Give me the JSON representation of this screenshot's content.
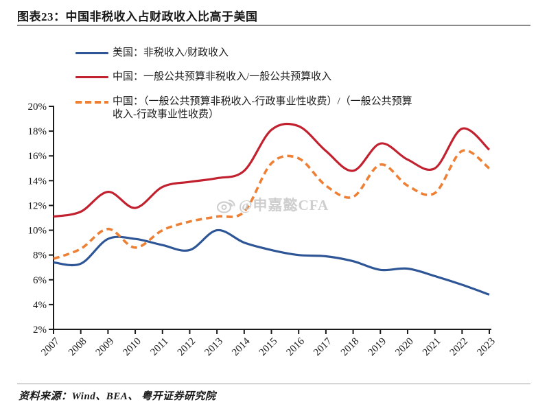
{
  "header": {
    "title": "图表23：中国非税收入占财政收入比高于美国"
  },
  "legend": {
    "items": [
      {
        "id": "us",
        "label": "美国：非税收入/财政收入",
        "color": "#2e5696",
        "style": "solid"
      },
      {
        "id": "china",
        "label": "中国：一般公共预算非税收入/一般公共预算收入",
        "color": "#c2212f",
        "style": "solid"
      },
      {
        "id": "china-adjusted",
        "label": "中国：（一般公共预算非税收入-行政事业性收费）/（一般公共预算",
        "label_line2": "收入-行政事业性收费）",
        "color": "#ee8035",
        "style": "dashed"
      }
    ]
  },
  "watermark": {
    "icon": "weibo-icon",
    "text": "@申嘉懿CFA",
    "color": "#c6c6c6"
  },
  "footer": {
    "source": "资料来源：Wind、BEA、 粤开证券研究院"
  },
  "chart_data": {
    "type": "line",
    "title": "中国非税收入占财政收入比高于美国",
    "x": [
      2007,
      2008,
      2009,
      2010,
      2011,
      2012,
      2013,
      2014,
      2015,
      2016,
      2017,
      2018,
      2019,
      2020,
      2021,
      2022,
      2023
    ],
    "series": [
      {
        "name": "美国：非税收入/财政收入",
        "color": "#2e5696",
        "dash": false,
        "values": [
          7.4,
          7.3,
          9.3,
          9.3,
          8.8,
          8.4,
          10.0,
          9.0,
          8.4,
          8.0,
          7.9,
          7.5,
          6.8,
          6.9,
          6.3,
          5.6,
          4.8
        ]
      },
      {
        "name": "中国：一般公共预算非税收入/一般公共预算收入",
        "color": "#c2212f",
        "dash": false,
        "values": [
          11.1,
          11.5,
          13.1,
          11.8,
          13.5,
          13.9,
          14.2,
          14.8,
          18.1,
          18.4,
          16.4,
          14.8,
          17.0,
          15.7,
          15.0,
          18.2,
          16.5
        ]
      },
      {
        "name": "中国：（一般公共预算非税收入-行政事业性收费）/（一般公共预算收入-行政事业性收费）",
        "color": "#ee8035",
        "dash": true,
        "values": [
          7.7,
          8.5,
          10.1,
          8.6,
          10.0,
          10.7,
          11.1,
          11.5,
          15.4,
          15.8,
          13.6,
          12.7,
          15.3,
          13.6,
          13.0,
          16.4,
          15.0
        ]
      }
    ],
    "xlabel": "",
    "ylabel": "",
    "ylim": [
      2,
      20
    ],
    "ytick_step": 2,
    "ytick_suffix": "%",
    "grid": false,
    "legend_position": "top-left"
  }
}
